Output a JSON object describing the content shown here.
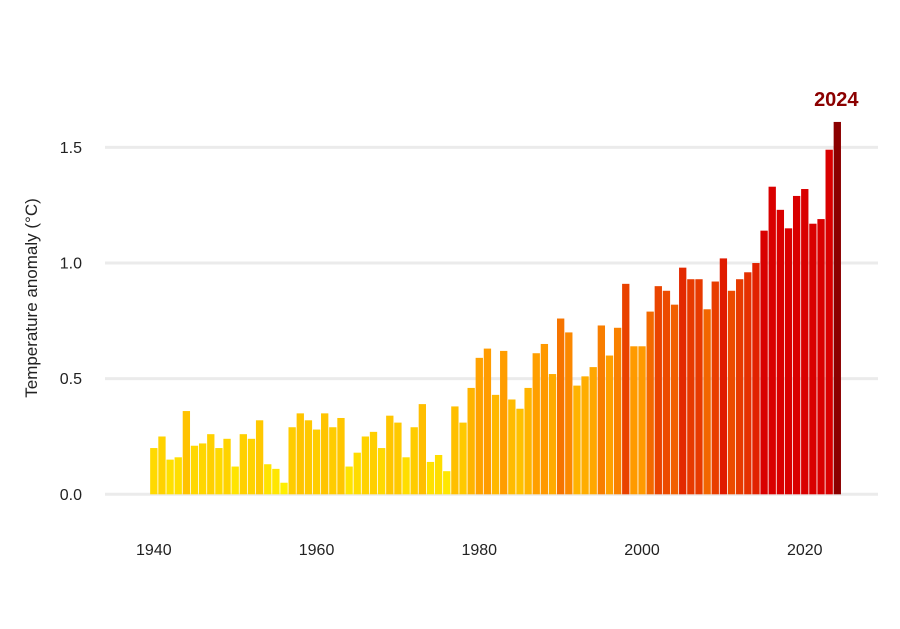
{
  "chart_data": {
    "type": "bar",
    "title": "",
    "xlabel": "",
    "ylabel": "Temperature anomaly (°C)",
    "xlim": [
      1934,
      2029
    ],
    "ylim": [
      -0.15,
      1.8
    ],
    "grid": "horizontal",
    "legend": "none",
    "x_ticks": [
      "1940",
      "1960",
      "1980",
      "2000",
      "2020"
    ],
    "y_ticks": [
      "0.0",
      "0.5",
      "1.0",
      "1.5"
    ],
    "highlight": {
      "label": "2024",
      "year": 2024,
      "color": "#8b0000"
    },
    "colors": {
      "scale_low": "#ffee00",
      "scale_mid": "#ff9900",
      "scale_high": "#d90000",
      "highlight": "#8b0000",
      "grid": "#ebebeb"
    },
    "years": [
      1940,
      1941,
      1942,
      1943,
      1944,
      1945,
      1946,
      1947,
      1948,
      1949,
      1950,
      1951,
      1952,
      1953,
      1954,
      1955,
      1956,
      1957,
      1958,
      1959,
      1960,
      1961,
      1962,
      1963,
      1964,
      1965,
      1966,
      1967,
      1968,
      1969,
      1970,
      1971,
      1972,
      1973,
      1974,
      1975,
      1976,
      1977,
      1978,
      1979,
      1980,
      1981,
      1982,
      1983,
      1984,
      1985,
      1986,
      1987,
      1988,
      1989,
      1990,
      1991,
      1992,
      1993,
      1994,
      1995,
      1996,
      1997,
      1998,
      1999,
      2000,
      2001,
      2002,
      2003,
      2004,
      2005,
      2006,
      2007,
      2008,
      2009,
      2010,
      2011,
      2012,
      2013,
      2014,
      2015,
      2016,
      2017,
      2018,
      2019,
      2020,
      2021,
      2022,
      2023,
      2024
    ],
    "values": [
      0.2,
      0.25,
      0.15,
      0.16,
      0.36,
      0.21,
      0.22,
      0.26,
      0.2,
      0.24,
      0.12,
      0.26,
      0.24,
      0.32,
      0.13,
      0.11,
      0.05,
      0.29,
      0.35,
      0.32,
      0.28,
      0.35,
      0.29,
      0.33,
      0.12,
      0.18,
      0.25,
      0.27,
      0.2,
      0.34,
      0.31,
      0.16,
      0.29,
      0.39,
      0.14,
      0.17,
      0.1,
      0.38,
      0.31,
      0.46,
      0.59,
      0.63,
      0.43,
      0.62,
      0.41,
      0.37,
      0.46,
      0.61,
      0.65,
      0.52,
      0.76,
      0.7,
      0.47,
      0.51,
      0.55,
      0.73,
      0.6,
      0.72,
      0.91,
      0.64,
      0.64,
      0.79,
      0.9,
      0.88,
      0.82,
      0.98,
      0.93,
      0.93,
      0.8,
      0.92,
      1.02,
      0.88,
      0.93,
      0.96,
      1.0,
      1.14,
      1.33,
      1.23,
      1.15,
      1.29,
      1.32,
      1.17,
      1.19,
      1.49,
      1.61
    ]
  }
}
